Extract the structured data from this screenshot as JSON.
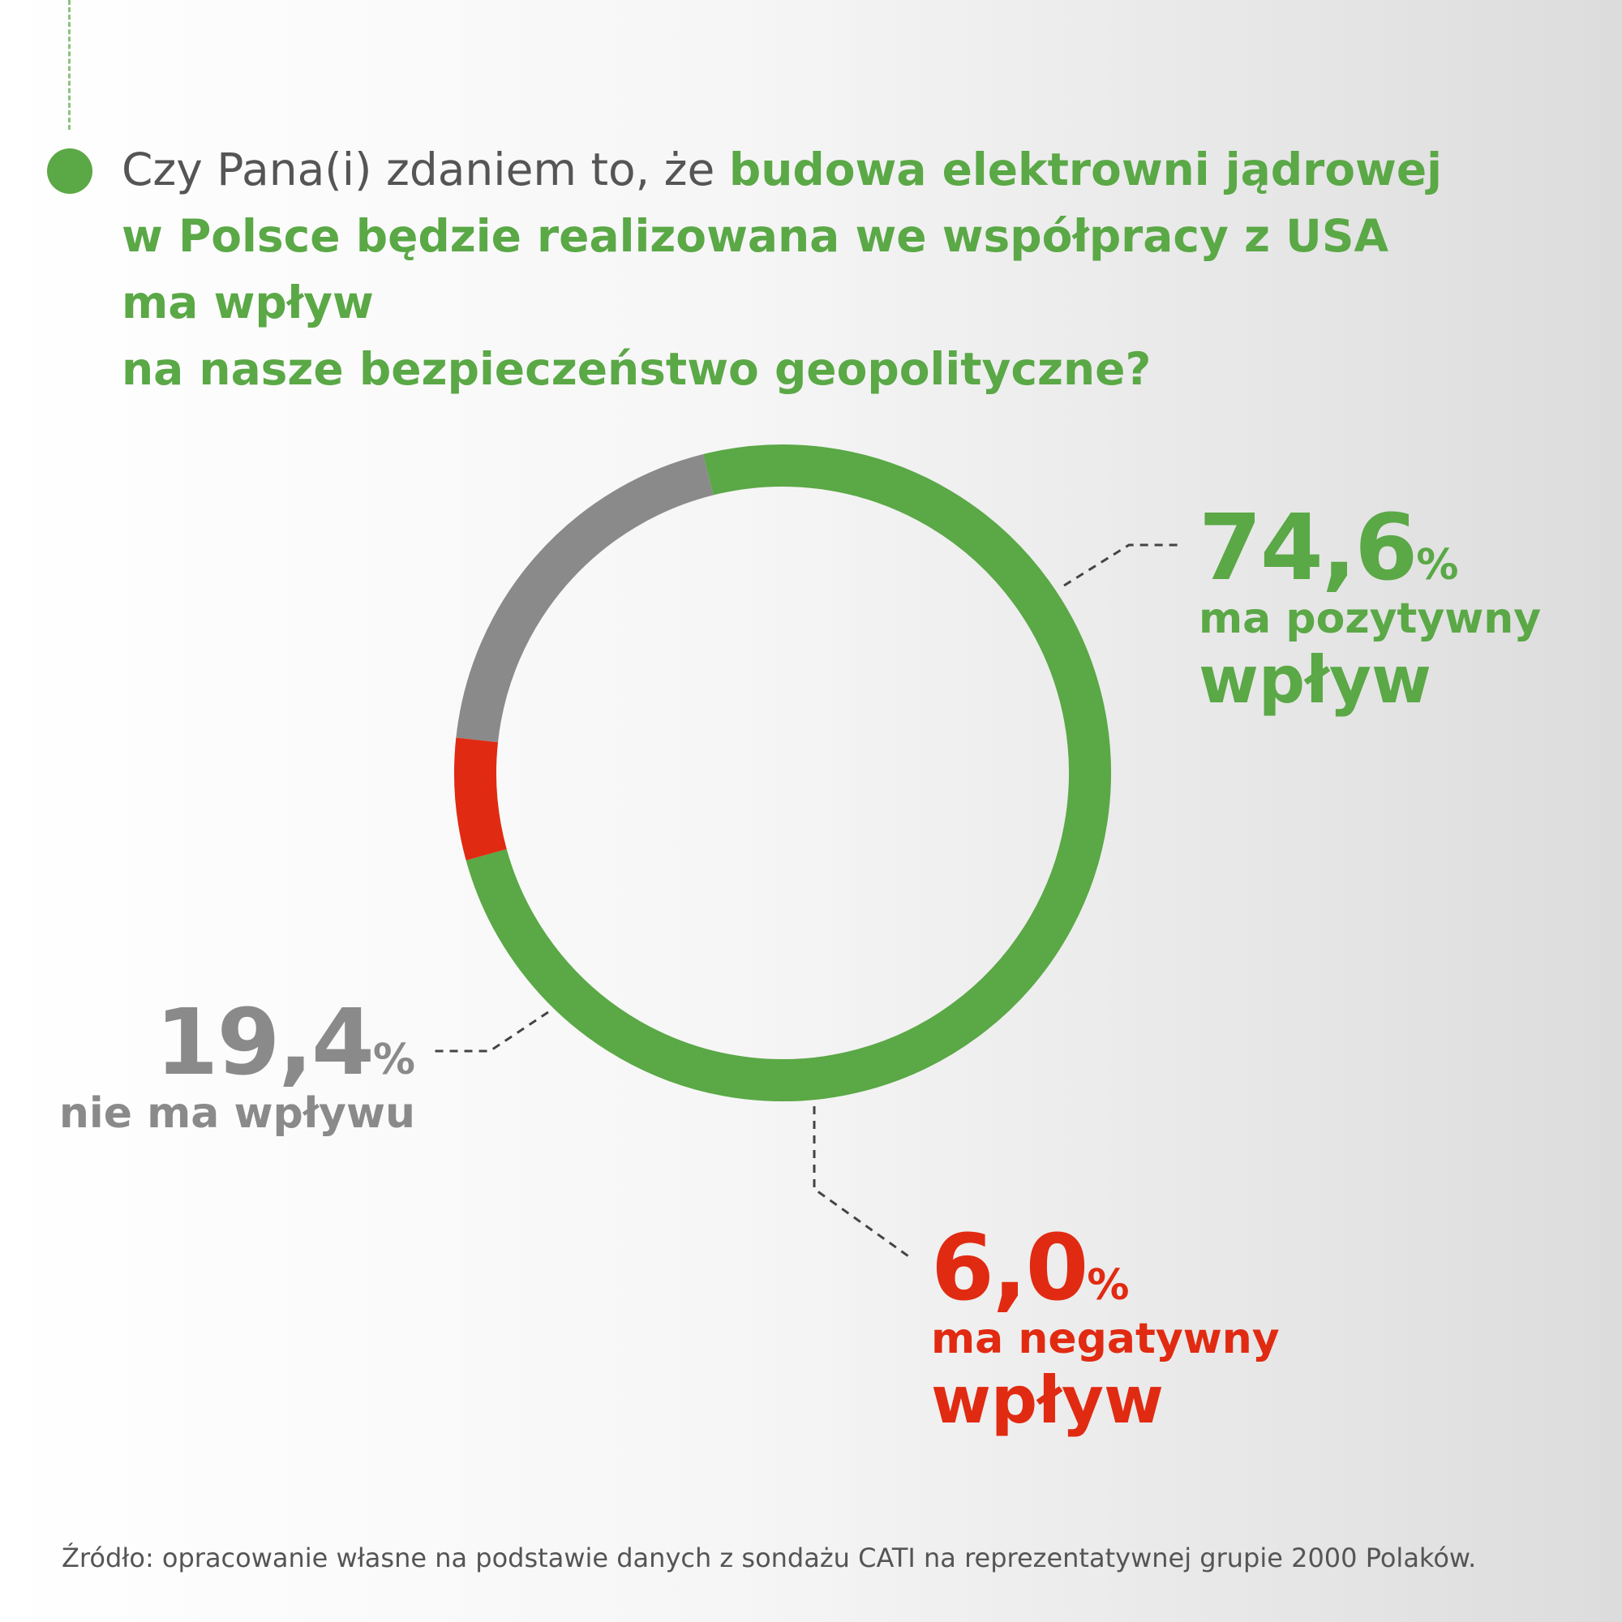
{
  "question": {
    "prefix": "Czy Pana(i) zdaniem to, że ",
    "line1_bold": "budowa elektrowni jądrowej",
    "line2_bold": "w Polsce będzie realizowana we współpracy z USA ma wpływ",
    "line3_bold": "na nasze bezpieczeństwo geopolityczne?"
  },
  "colors": {
    "positive": "#5aa846",
    "none": "#8a8a8a",
    "negative": "#e12a12"
  },
  "chart_data": {
    "type": "pie",
    "donut": true,
    "categories": [
      "ma pozytywny wpływ",
      "ma negatywny wpływ",
      "nie ma wpływu"
    ],
    "values": [
      74.6,
      6.0,
      19.4
    ],
    "unit": "%",
    "labels": {
      "positive": {
        "value": "74,6",
        "unit": "%",
        "line1": "ma pozytywny",
        "line2": "wpływ"
      },
      "negative": {
        "value": "6,0",
        "unit": "%",
        "line1": "ma negatywny",
        "line2": "wpływ"
      },
      "none": {
        "value": "19,4",
        "unit": "%",
        "line1": "nie ma wpływu"
      }
    }
  },
  "source": "Źródło: opracowanie własne na podstawie danych z sondażu CATI na reprezentatywnej grupie 2000 Polaków."
}
